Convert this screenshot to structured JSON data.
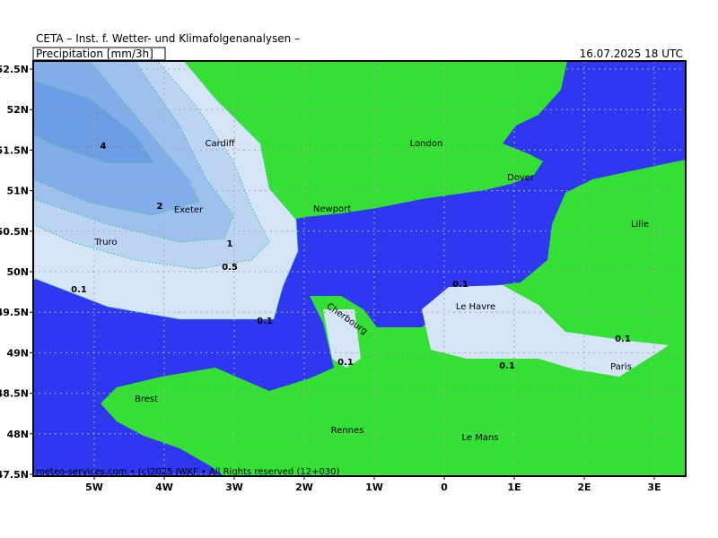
{
  "header": {
    "title": "CETA – Inst. f. Wetter- und Klimafolgenanalysen –",
    "product": "Precipitation [mm/3h]",
    "valid_time": "16.07.2025 18 UTC"
  },
  "map": {
    "lat_labels": [
      "52.5N",
      "52N",
      "51.5N",
      "51N",
      "50.5N",
      "50N",
      "49.5N",
      "49N",
      "48.5N",
      "48N",
      "47.5N"
    ],
    "lon_labels": [
      "5W",
      "4W",
      "3W",
      "2W",
      "1W",
      "0",
      "1E",
      "2E",
      "3E"
    ],
    "places": [
      "Cardiff",
      "London",
      "Dover",
      "Newport",
      "Exeter",
      "Truro",
      "Lille",
      "Cherbourg",
      "Le Havre",
      "Paris",
      "Brest",
      "Rennes",
      "Le Mans"
    ],
    "contour_labels": [
      "4",
      "2",
      "1",
      "0.5",
      "0.1",
      "0.1",
      "0.1",
      "0.1",
      "0.1",
      "0.1"
    ]
  },
  "footer": "meteo-services.com • (c)2025 IWKF • All Rights reserved (12+030)"
}
